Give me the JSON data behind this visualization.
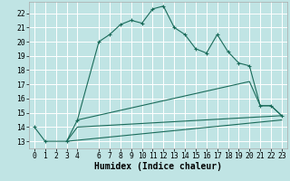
{
  "bg_color": "#c0e4e4",
  "grid_color": "#ffffff",
  "line_color": "#1a6b5a",
  "xlabel": "Humidex (Indice chaleur)",
  "xlabel_fontsize": 7,
  "tick_fontsize": 5.8,
  "ylim": [
    12.5,
    22.8
  ],
  "xlim": [
    -0.5,
    23.5
  ],
  "yticks": [
    13,
    14,
    15,
    16,
    17,
    18,
    19,
    20,
    21,
    22
  ],
  "xticks": [
    0,
    1,
    2,
    3,
    4,
    6,
    7,
    8,
    9,
    10,
    11,
    12,
    13,
    14,
    15,
    16,
    17,
    18,
    19,
    20,
    21,
    22,
    23
  ],
  "curve1_x": [
    0,
    1,
    3,
    4,
    6,
    7,
    8,
    9,
    10,
    11,
    12,
    13,
    14,
    15,
    16,
    17,
    18,
    19,
    20,
    21,
    22,
    23
  ],
  "curve1_y": [
    14.0,
    13.0,
    13.0,
    14.5,
    20.0,
    20.5,
    21.2,
    21.5,
    21.3,
    22.3,
    22.5,
    21.0,
    20.5,
    19.5,
    19.2,
    20.5,
    19.3,
    18.5,
    18.3,
    15.5,
    15.5,
    14.8
  ],
  "line1_x": [
    3,
    4,
    23
  ],
  "line1_y": [
    13.0,
    14.0,
    14.8
  ],
  "line2_x": [
    3,
    23
  ],
  "line2_y": [
    13.0,
    14.5
  ],
  "line3_x": [
    4,
    20,
    21,
    22,
    23
  ],
  "line3_y": [
    14.5,
    17.2,
    15.5,
    15.5,
    14.8
  ]
}
